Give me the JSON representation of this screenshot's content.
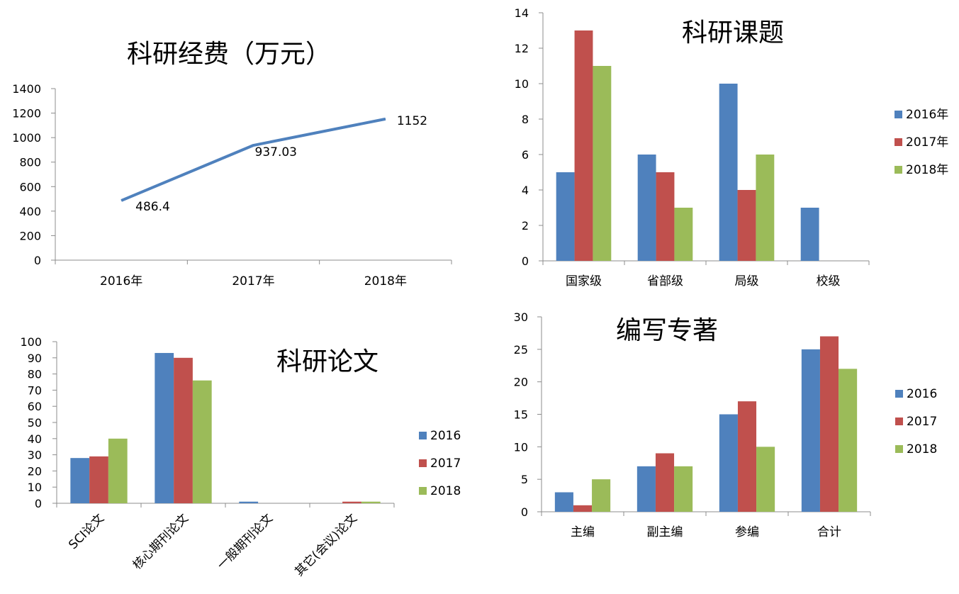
{
  "colors": {
    "s2016": "#4f81bd",
    "s2017": "#c0504d",
    "s2018": "#9bbb59",
    "axis": "#8c8c8c"
  },
  "chart_data": [
    {
      "id": "funding",
      "type": "line",
      "title": "科研经费（万元）",
      "categories": [
        "2016年",
        "2017年",
        "2018年"
      ],
      "series": [
        {
          "name": "科研经费",
          "values": [
            486.4,
            937.03,
            1152
          ],
          "labels": [
            "486.4",
            "937.03",
            "1152"
          ]
        }
      ],
      "yticks": [
        0,
        200,
        400,
        600,
        800,
        1000,
        1200,
        1400
      ],
      "ylim": [
        0,
        1400
      ],
      "legend": "none"
    },
    {
      "id": "projects",
      "type": "bar",
      "title": "科研课题",
      "categories": [
        "国家级",
        "省部级",
        "局级",
        "校级"
      ],
      "series": [
        {
          "name": "2016年",
          "values": [
            5,
            6,
            10,
            3
          ]
        },
        {
          "name": "2017年",
          "values": [
            13,
            5,
            4,
            0
          ]
        },
        {
          "name": "2018年",
          "values": [
            11,
            3,
            6,
            0
          ]
        }
      ],
      "yticks": [
        0,
        2,
        4,
        6,
        8,
        10,
        12,
        14
      ],
      "ylim": [
        0,
        14
      ],
      "legend": "right"
    },
    {
      "id": "papers",
      "type": "bar",
      "title": "科研论文",
      "categories": [
        "SCI论文",
        "核心期刊论文",
        "一般期刊论文",
        "其它(会议)论文"
      ],
      "series": [
        {
          "name": "2016",
          "values": [
            28,
            93,
            1,
            0
          ]
        },
        {
          "name": "2017",
          "values": [
            29,
            90,
            0,
            1
          ]
        },
        {
          "name": "2018",
          "values": [
            40,
            76,
            0,
            1
          ]
        }
      ],
      "yticks": [
        0,
        10,
        20,
        30,
        40,
        50,
        60,
        70,
        80,
        90,
        100
      ],
      "ylim": [
        0,
        100
      ],
      "legend": "right"
    },
    {
      "id": "books",
      "type": "bar",
      "title": "编写专著",
      "categories": [
        "主编",
        "副主编",
        "参编",
        "合计"
      ],
      "series": [
        {
          "name": "2016",
          "values": [
            3,
            7,
            15,
            25
          ]
        },
        {
          "name": "2017",
          "values": [
            1,
            9,
            17,
            27
          ]
        },
        {
          "name": "2018",
          "values": [
            5,
            7,
            10,
            22
          ]
        }
      ],
      "yticks": [
        0,
        5,
        10,
        15,
        20,
        25,
        30
      ],
      "ylim": [
        0,
        30
      ],
      "legend": "right"
    }
  ]
}
